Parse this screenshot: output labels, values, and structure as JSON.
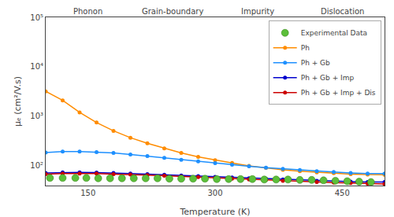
{
  "chart_data": {
    "type": "line",
    "xlabel": "Temperature (K)",
    "ylabel": "μₑ (cm²/V.s)",
    "log": "y",
    "grid": false,
    "legend": "upper right",
    "xlim": [
      100,
      500
    ],
    "xticks": [
      150,
      300,
      450
    ],
    "ylim": [
      40,
      100000
    ],
    "yticks": [
      {
        "value": 100,
        "label": "10²"
      },
      {
        "value": 1000,
        "label": "10³"
      },
      {
        "value": 10000,
        "label": "10⁴"
      },
      {
        "value": 100000,
        "label": "10⁵"
      }
    ],
    "annotations": [
      "Phonon",
      "Grain-boundary",
      "Impurity",
      "Dislocation"
    ],
    "series": [
      {
        "name": "Experimental Data",
        "type": "scatter",
        "marker": "circle",
        "color": "#5CBF3A",
        "x": [
          105,
          120,
          135,
          148,
          162,
          176,
          190,
          204,
          218,
          232,
          246,
          260,
          274,
          288,
          302,
          316,
          330,
          344,
          358,
          372,
          386,
          400,
          414,
          428,
          442,
          456,
          470,
          484
        ],
        "values": [
          57,
          57,
          57,
          57,
          56,
          56,
          56,
          56,
          56,
          56,
          55,
          55,
          55,
          55,
          54,
          54,
          54,
          54,
          53,
          53,
          53,
          52,
          52,
          51,
          50,
          49,
          48,
          47
        ]
      },
      {
        "name": "Ph",
        "type": "line",
        "marker": "circle",
        "color": "#FF8C00",
        "x": [
          100,
          120,
          140,
          160,
          180,
          200,
          220,
          240,
          260,
          280,
          300,
          320,
          340,
          360,
          380,
          400,
          420,
          440,
          460,
          480,
          500
        ],
        "values": [
          3200,
          2100,
          1200,
          750,
          510,
          370,
          285,
          225,
          182,
          152,
          130,
          114,
          100,
          91,
          83,
          78,
          74,
          71,
          68,
          67,
          66
        ]
      },
      {
        "name": "Ph + Gb",
        "type": "line",
        "marker": "circle",
        "color": "#1E90FF",
        "x": [
          100,
          120,
          140,
          160,
          180,
          200,
          220,
          240,
          260,
          280,
          300,
          320,
          340,
          360,
          380,
          400,
          420,
          440,
          460,
          480,
          500
        ],
        "values": [
          185,
          195,
          195,
          190,
          182,
          170,
          157,
          145,
          133,
          123,
          113,
          105,
          98,
          92,
          87,
          82,
          78,
          75,
          72,
          70,
          70
        ]
      },
      {
        "name": "Ph + Gb + Imp",
        "type": "line",
        "marker": "circle",
        "color": "#0000CD",
        "x": [
          100,
          120,
          140,
          160,
          180,
          200,
          220,
          240,
          260,
          280,
          300,
          320,
          340,
          360,
          380,
          400,
          420,
          440,
          460,
          480,
          500
        ],
        "values": [
          72,
          74,
          74,
          73,
          72,
          70,
          68,
          66,
          64,
          62,
          60,
          58,
          56,
          55,
          53,
          52,
          50,
          49,
          48,
          47,
          47
        ]
      },
      {
        "name": "Ph + Gb + Imp + Dis",
        "type": "line",
        "marker": "circle",
        "color": "#CC0000",
        "x": [
          100,
          120,
          140,
          160,
          180,
          200,
          220,
          240,
          260,
          280,
          300,
          320,
          340,
          360,
          380,
          400,
          420,
          440,
          460,
          480,
          500
        ],
        "values": [
          68,
          70,
          70,
          70,
          68,
          67,
          65,
          63,
          61,
          59,
          57,
          55,
          53,
          52,
          50,
          49,
          47,
          46,
          45,
          44,
          43
        ]
      }
    ]
  }
}
